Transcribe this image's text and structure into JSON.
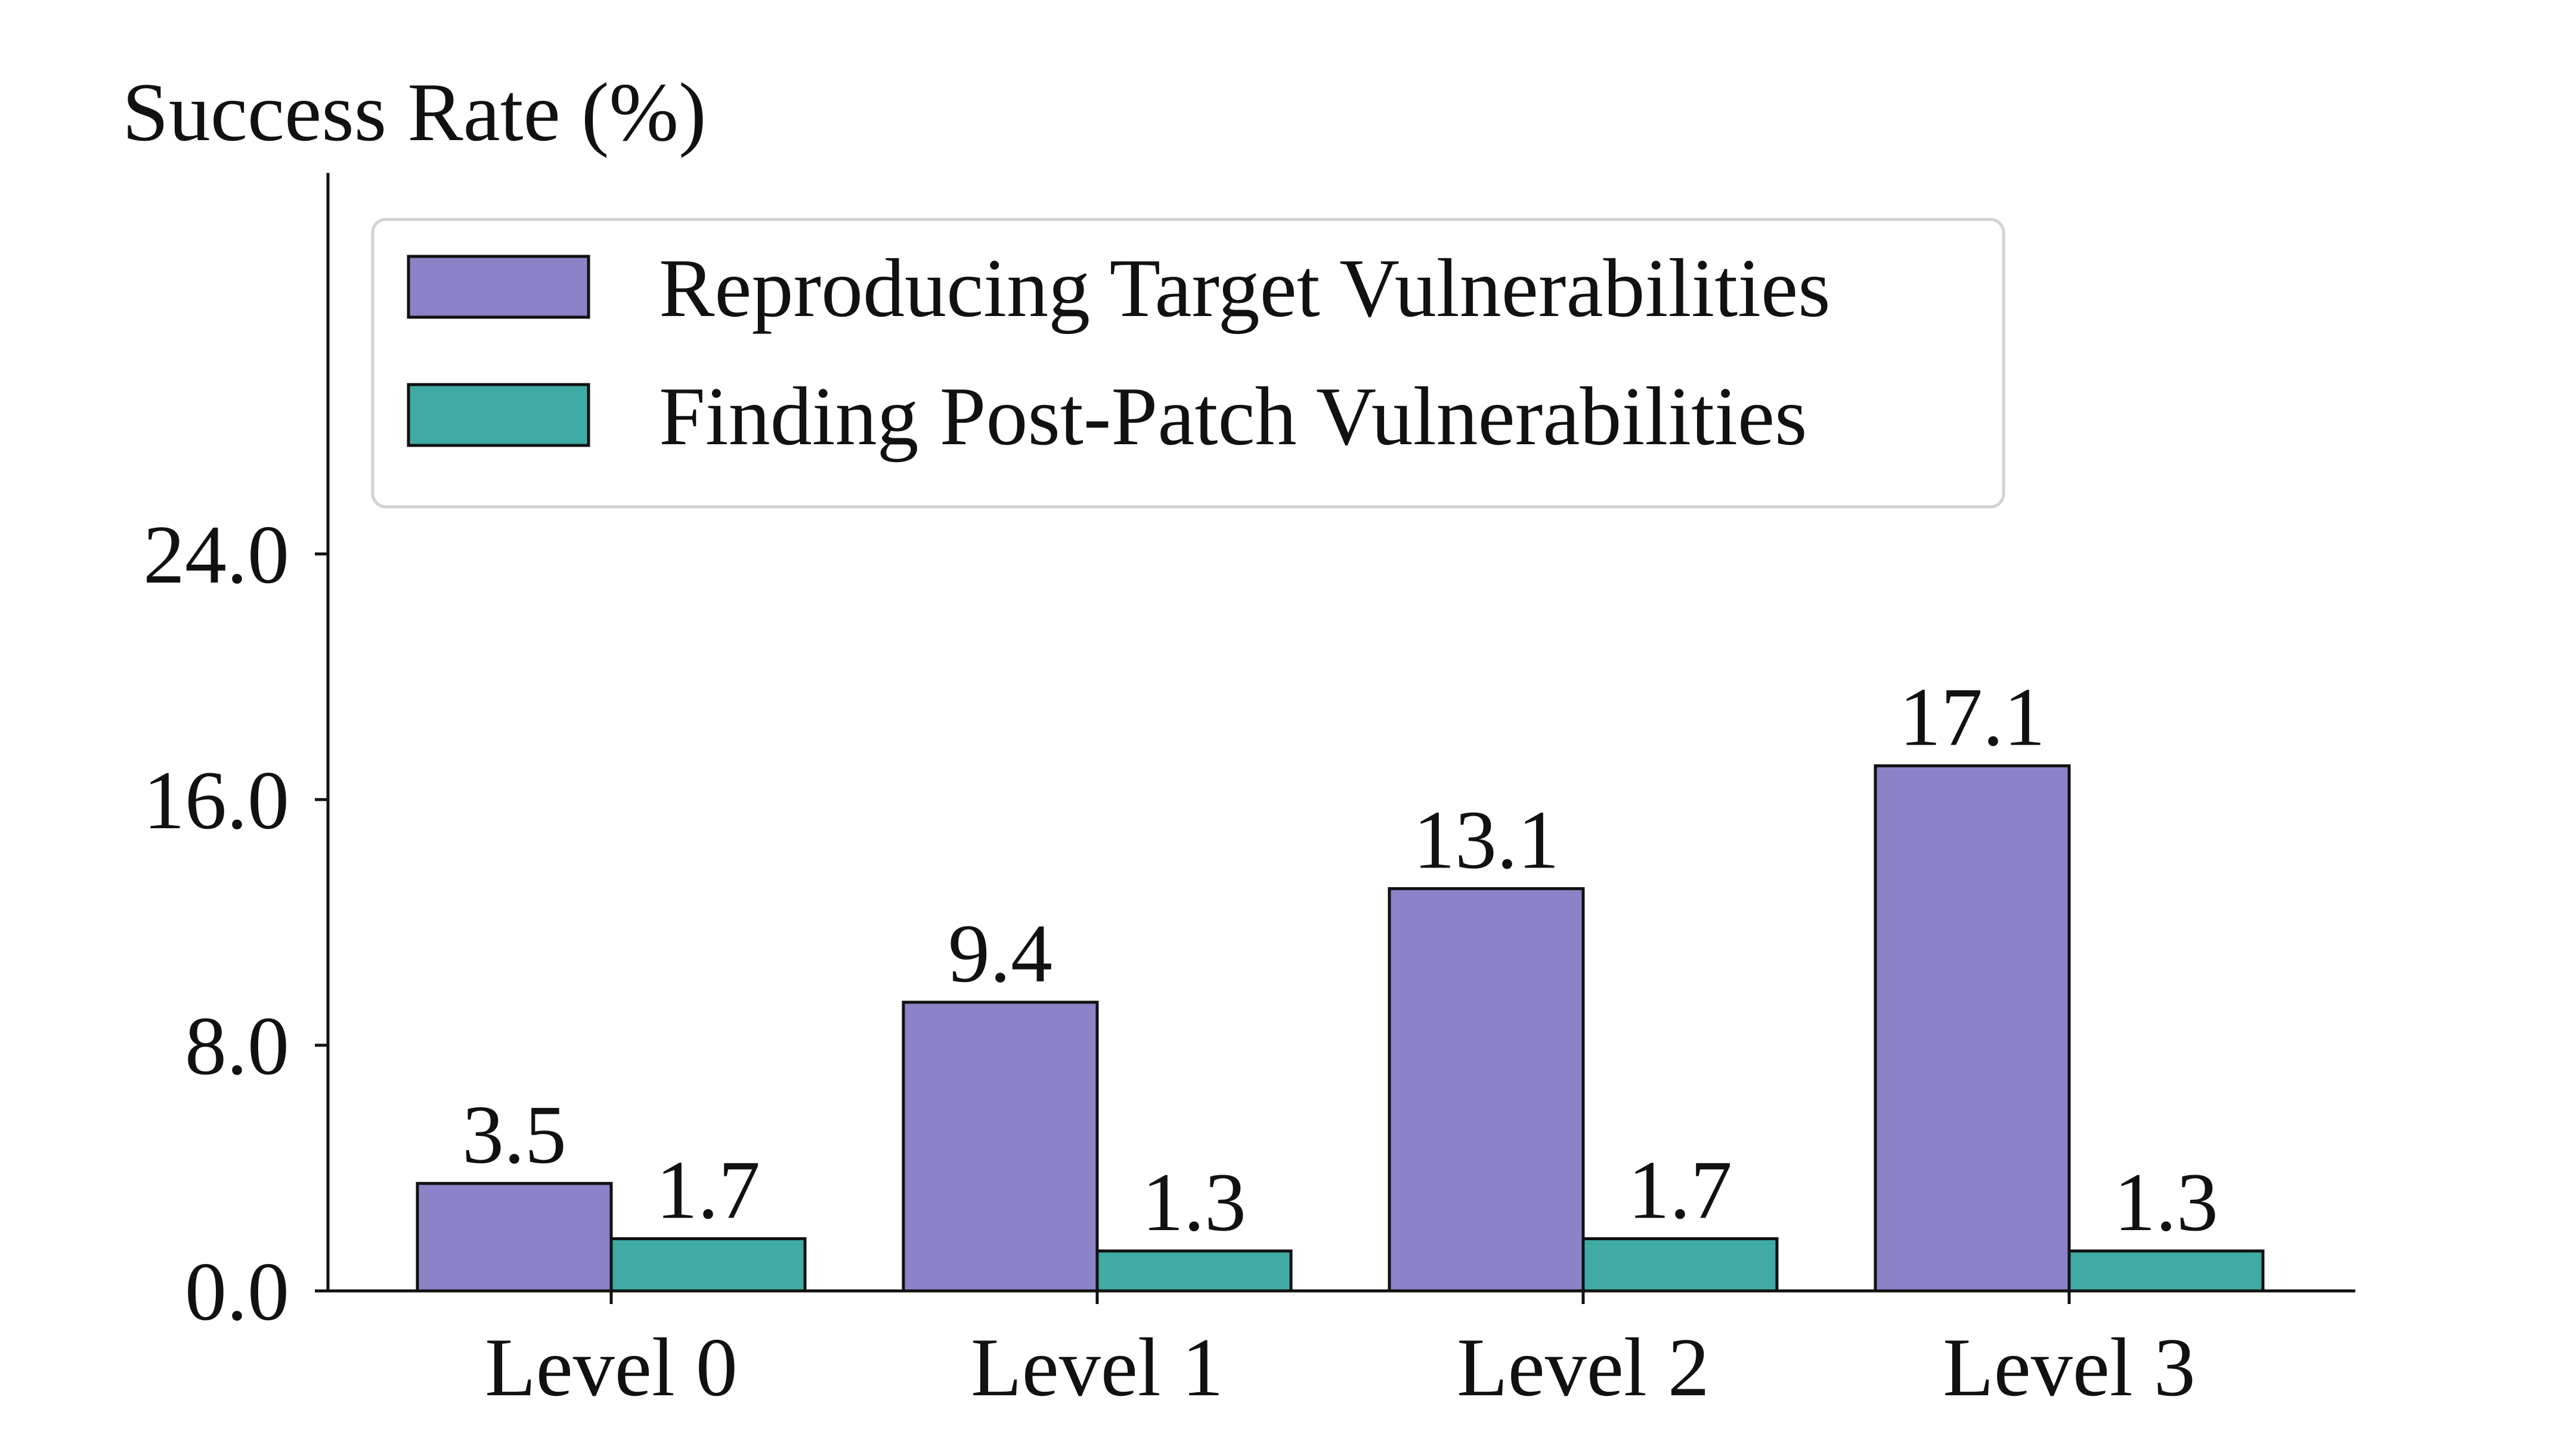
{
  "chart_data": {
    "type": "bar",
    "ylabel": "Success Rate (%)",
    "xlabel": "",
    "categories": [
      "Level 0",
      "Level 1",
      "Level 2",
      "Level 3"
    ],
    "series": [
      {
        "name": "Reproducing Target Vulnerabilities",
        "color": "#8b83c8",
        "values": [
          3.5,
          9.4,
          13.1,
          17.1
        ],
        "labels": [
          "3.5",
          "9.4",
          "13.1",
          "17.1"
        ]
      },
      {
        "name": "Finding Post-Patch Vulnerabilities",
        "color": "#3faba4",
        "values": [
          1.7,
          1.3,
          1.7,
          1.3
        ],
        "labels": [
          "1.7",
          "1.3",
          "1.7",
          "1.3"
        ]
      }
    ],
    "yticks": [
      0,
      8,
      16,
      24
    ],
    "ytick_labels": [
      "0.0",
      "8.0",
      "16.0",
      "24.0"
    ],
    "ylim": [
      0,
      29
    ],
    "legend_position": "top-left",
    "grid": false
  }
}
